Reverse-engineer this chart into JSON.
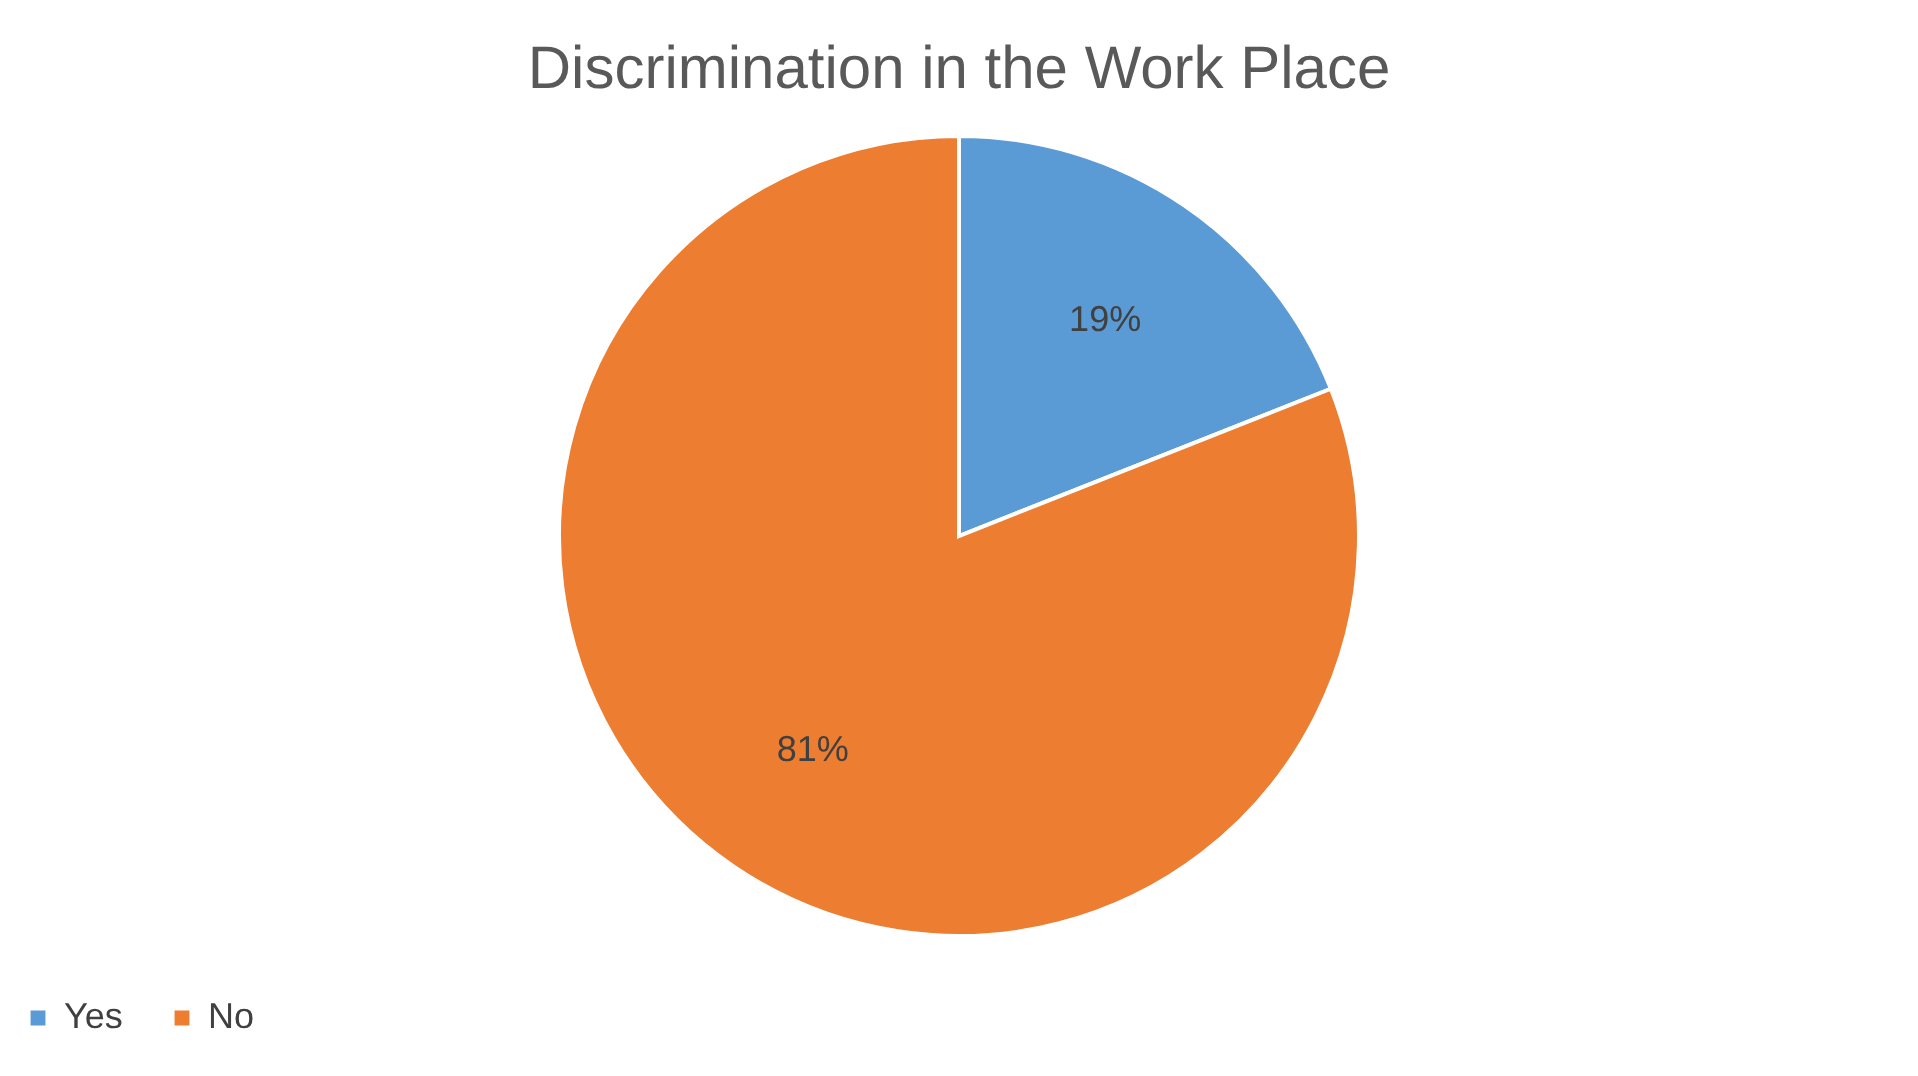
{
  "chart_data": {
    "type": "pie",
    "title": "Discrimination in the Work Place",
    "categories": [
      "Yes",
      "No"
    ],
    "values": [
      19,
      81
    ],
    "colors": [
      "#5b9bd5",
      "#ed7d31"
    ],
    "value_labels": [
      "19%",
      "81%"
    ],
    "legend": "bottom"
  }
}
